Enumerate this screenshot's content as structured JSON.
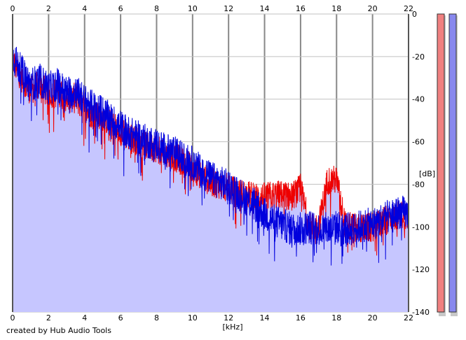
{
  "footer": {
    "credit": "created by Hub Audio Tools"
  },
  "colors": {
    "background": "#ffffff",
    "fill": "#c6c6ff",
    "grid": "#c0c0c0",
    "major_grid": "#888888",
    "channel_left": "#ee0000",
    "channel_right": "#0000dd",
    "meter_left_fill": "#f08080",
    "meter_right_fill": "#8888ee"
  },
  "chart_data": {
    "type": "line",
    "title": "",
    "xlabel": "[kHz]",
    "ylabel": "[dB]",
    "xlim": [
      0,
      22
    ],
    "ylim": [
      -140,
      0
    ],
    "x_ticks": [
      "0",
      "2",
      "4",
      "6",
      "8",
      "10",
      "12",
      "14",
      "16",
      "18",
      "20",
      "22"
    ],
    "y_ticks": [
      "0",
      "-20",
      "-40",
      "-60",
      "-80",
      "-100",
      "-120",
      "-140"
    ],
    "grid": true,
    "series": [
      {
        "channel": "left",
        "x": [
          0,
          0.5,
          1,
          1.5,
          2,
          2.5,
          3,
          3.5,
          4,
          4.5,
          5,
          5.5,
          6,
          6.5,
          7,
          7.5,
          8,
          8.5,
          9,
          9.5,
          10,
          10.5,
          11,
          11.5,
          12,
          12.5,
          13,
          13.5,
          14,
          14.5,
          15,
          15.5,
          16,
          16.5,
          17,
          17.5,
          18,
          18.5,
          19,
          19.5,
          20,
          20.5,
          21,
          21.5,
          22
        ],
        "values": [
          -22,
          -30,
          -36,
          -33,
          -38,
          -36,
          -40,
          -39,
          -45,
          -47,
          -48,
          -52,
          -55,
          -58,
          -60,
          -62,
          -63,
          -66,
          -67,
          -70,
          -72,
          -76,
          -79,
          -80,
          -82,
          -84,
          -85,
          -86,
          -86,
          -85,
          -85,
          -86,
          -82,
          -100,
          -100,
          -78,
          -78,
          -100,
          -100,
          -101,
          -100,
          -98,
          -96,
          -94,
          -95
        ]
      },
      {
        "channel": "right",
        "x": [
          0,
          0.5,
          1,
          1.5,
          2,
          2.5,
          3,
          3.5,
          4,
          4.5,
          5,
          5.5,
          6,
          6.5,
          7,
          7.5,
          8,
          8.5,
          9,
          9.5,
          10,
          10.5,
          11,
          11.5,
          12,
          12.5,
          13,
          13.5,
          14,
          14.5,
          15,
          15.5,
          16,
          16.5,
          17,
          17.5,
          18,
          18.5,
          19,
          19.5,
          20,
          20.5,
          21,
          21.5,
          22
        ],
        "values": [
          -20,
          -27,
          -33,
          -31,
          -35,
          -33,
          -37,
          -36,
          -41,
          -44,
          -46,
          -50,
          -53,
          -56,
          -58,
          -60,
          -61,
          -64,
          -65,
          -68,
          -70,
          -74,
          -77,
          -79,
          -81,
          -84,
          -87,
          -90,
          -94,
          -97,
          -99,
          -101,
          -101,
          -100,
          -101,
          -101,
          -100,
          -101,
          -101,
          -99,
          -99,
          -96,
          -95,
          -93,
          -94
        ]
      }
    ],
    "level_meters": [
      {
        "channel": "left",
        "level_db": -140
      },
      {
        "channel": "right",
        "level_db": -140
      }
    ]
  }
}
